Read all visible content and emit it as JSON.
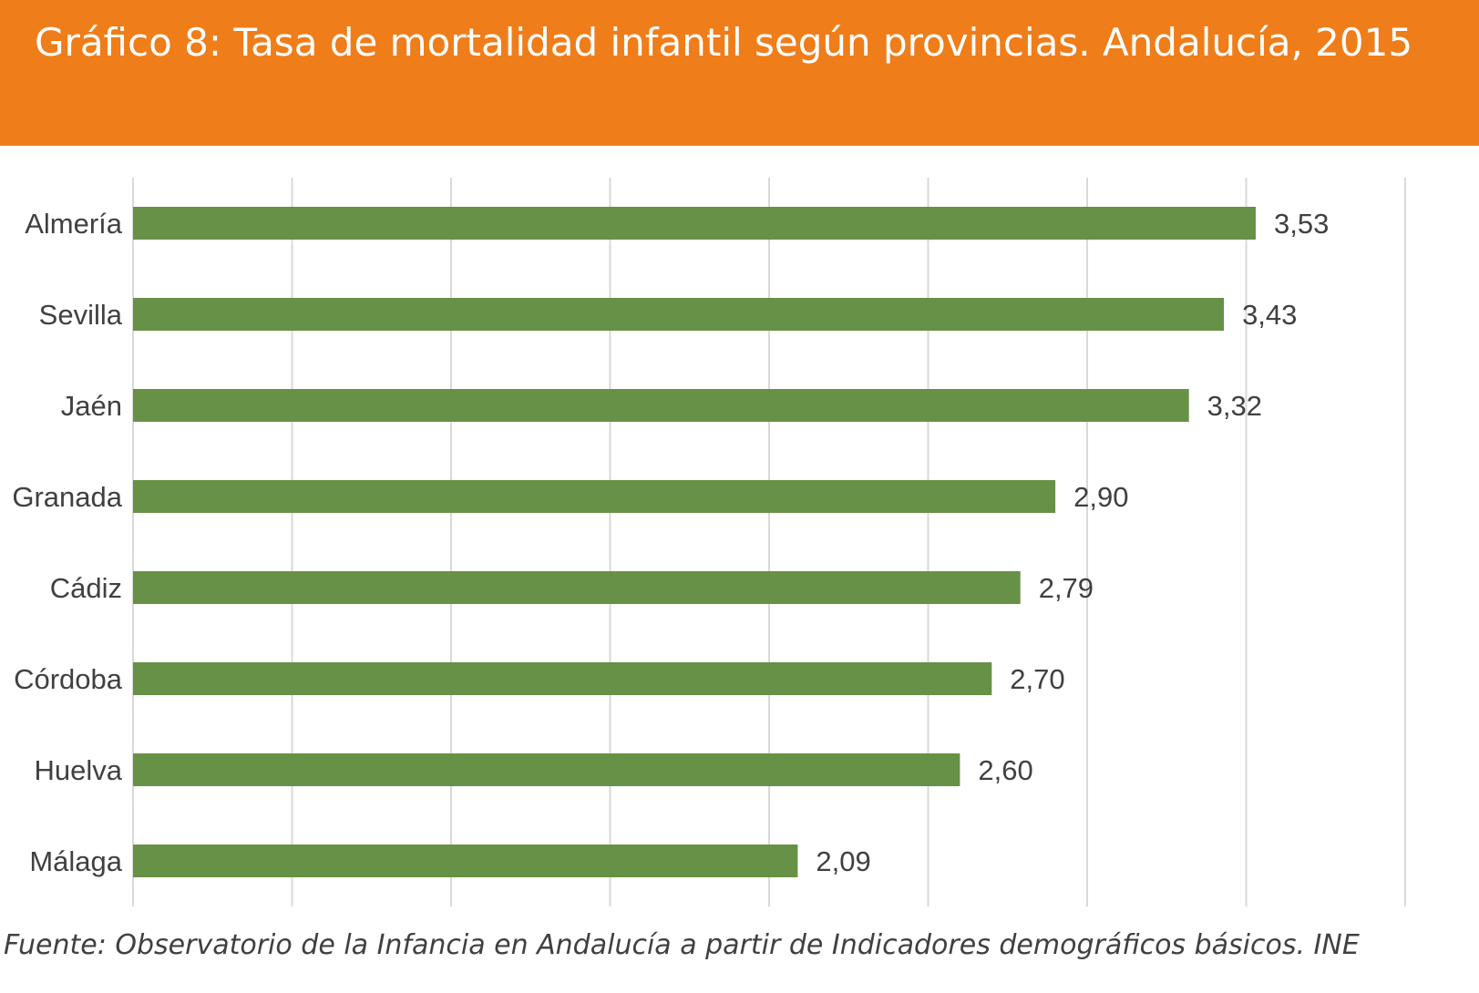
{
  "header": {
    "title": "Gráfico 8: Tasa de mortalidad infantil según provincias. Andalucía, 2015"
  },
  "colors": {
    "header_bg": "#ef7d1a",
    "bar": "#679146",
    "grid": "#d9d9d9",
    "text": "#404040"
  },
  "chart_data": {
    "type": "bar",
    "orientation": "horizontal",
    "title": "Gráfico 8: Tasa de mortalidad infantil según provincias. Andalucía, 2015",
    "categories": [
      "Almería",
      "Sevilla",
      "Jaén",
      "Granada",
      "Cádiz",
      "Córdoba",
      "Huelva",
      "Málaga"
    ],
    "values": [
      3.53,
      3.43,
      3.32,
      2.9,
      2.79,
      2.7,
      2.6,
      2.09
    ],
    "value_labels": [
      "3,53",
      "3,43",
      "3,32",
      "2,90",
      "2,79",
      "2,70",
      "2,60",
      "2,09"
    ],
    "xlim": [
      0,
      4
    ],
    "grid": true,
    "legend": "none"
  },
  "source": "Fuente:  Observatorio de la Infancia en Andalucía a partir de Indicadores demográficos básicos. INE"
}
